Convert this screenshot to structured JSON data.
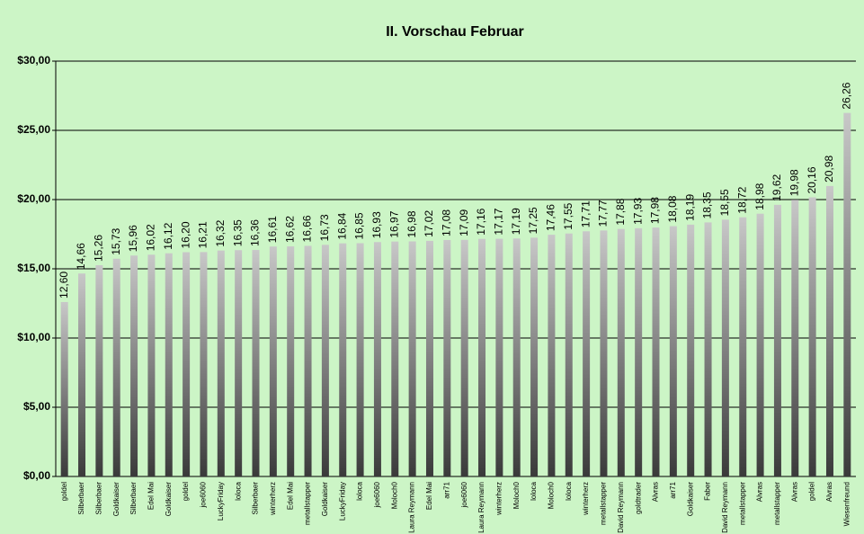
{
  "chart_data": {
    "type": "bar",
    "title": "II. Vorschau Februar",
    "categories": [
      "goldel",
      "Silberbaer",
      "Silberbaer",
      "Goldkaiser",
      "Silberbaer",
      "Edel Mai",
      "Goldkaiser",
      "goldel",
      "joe6060",
      "LuckyFriday",
      "loloca",
      "Silberbaer",
      "winterherz",
      "Edel Mai",
      "metallstapper",
      "Goldkaiser",
      "LuckyFriday",
      "loloca",
      "joe6060",
      "Moloch0",
      "Laura Reymann",
      "Edel Mai",
      "arr71",
      "joe6060",
      "Laura Reymann",
      "winterherz",
      "Moloch0",
      "loloca",
      "Moloch0",
      "loloca",
      "winterherz",
      "metallstapper",
      "David Reymann",
      "goldtrader",
      "Alvras",
      "arr71",
      "Goldkaiser",
      "Faber",
      "David Reymann",
      "metallstapper",
      "Alvras",
      "metallstapper",
      "Alvras",
      "goldel",
      "Alvras",
      "Wiesenfreund"
    ],
    "values": [
      12.6,
      14.66,
      15.26,
      15.73,
      15.96,
      16.02,
      16.12,
      16.2,
      16.21,
      16.32,
      16.35,
      16.36,
      16.61,
      16.62,
      16.66,
      16.73,
      16.84,
      16.85,
      16.93,
      16.97,
      16.98,
      17.02,
      17.08,
      17.09,
      17.16,
      17.17,
      17.19,
      17.25,
      17.46,
      17.55,
      17.71,
      17.77,
      17.88,
      17.93,
      17.98,
      18.08,
      18.19,
      18.35,
      18.55,
      18.72,
      18.98,
      19.62,
      19.98,
      20.16,
      20.98,
      26.26
    ],
    "value_labels": [
      "12,60",
      "14,66",
      "15,26",
      "15,73",
      "15,96",
      "16,02",
      "16,12",
      "16,20",
      "16,21",
      "16,32",
      "16,35",
      "16,36",
      "16,61",
      "16,62",
      "16,66",
      "16,73",
      "16,84",
      "16,85",
      "16,93",
      "16,97",
      "16,98",
      "17,02",
      "17,08",
      "17,09",
      "17,16",
      "17,17",
      "17,19",
      "17,25",
      "17,46",
      "17,55",
      "17,71",
      "17,77",
      "17,88",
      "17,93",
      "17,98",
      "18,08",
      "18,19",
      "18,35",
      "18,55",
      "18,72",
      "18,98",
      "19,62",
      "19,98",
      "20,16",
      "20,98",
      "26,26"
    ],
    "ylim": [
      0,
      30
    ],
    "yticks": [
      {
        "value": 0,
        "label": "$0,00"
      },
      {
        "value": 5,
        "label": "$5,00"
      },
      {
        "value": 10,
        "label": "$10,00"
      },
      {
        "value": 15,
        "label": "$15,00"
      },
      {
        "value": 20,
        "label": "$20,00"
      },
      {
        "value": 25,
        "label": "$25,00"
      },
      {
        "value": 30,
        "label": "$30,00"
      }
    ],
    "grid": true
  }
}
